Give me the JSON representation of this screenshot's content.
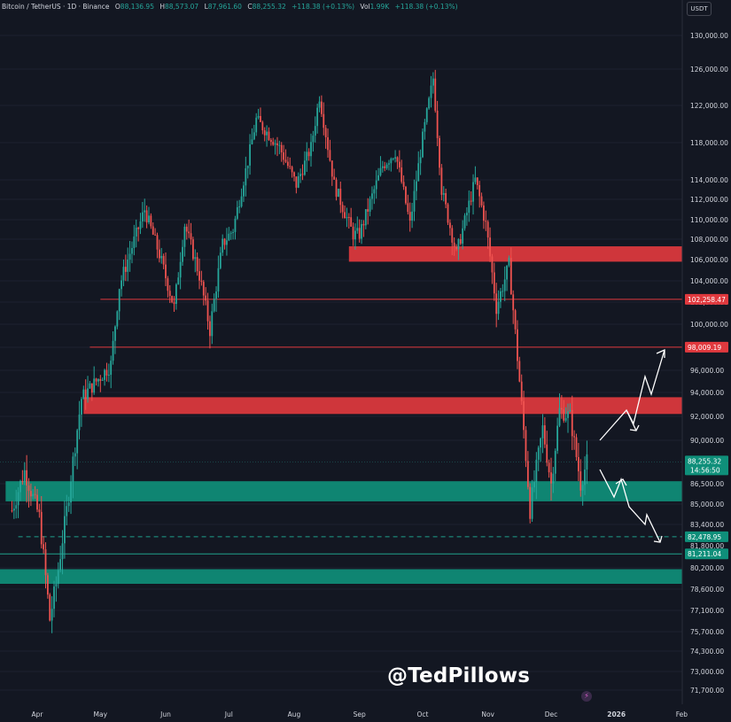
{
  "header": {
    "symbol": "Bitcoin / TetherUS · 1D · Binance",
    "open_label": "O",
    "open": "88,136.95",
    "high_label": "H",
    "high": "88,573.07",
    "low_label": "L",
    "low": "87,961.60",
    "close_label": "C",
    "close": "88,255.32",
    "change": "+118.38 (+0.13%)",
    "vol_label": "Vol",
    "vol": "1.99K",
    "vol_change": "+118.38 (+0.13%)"
  },
  "currency_button": "USDT",
  "watermark": "@TedPillows",
  "colors": {
    "background": "#131722",
    "up": "#26a69a",
    "down": "#ef5350",
    "zone_red": "#e0393e",
    "zone_green": "#0f8f7a",
    "text": "#d1d4dc",
    "arrows": "#ffffff"
  },
  "chart_data": {
    "type": "candlestick",
    "title": "Bitcoin / TetherUS · 1D · Binance",
    "x_ticks": [
      "Apr",
      "May",
      "Jun",
      "Jul",
      "Aug",
      "Sep",
      "Oct",
      "Nov",
      "Dec",
      "2026",
      "Feb"
    ],
    "y_ticks": [
      130000,
      126000,
      122000,
      118000,
      114000,
      112000,
      110000,
      108000,
      106000,
      104000,
      102000,
      100000,
      98000,
      96000,
      94000,
      92000,
      90000,
      86500,
      85000,
      83400,
      80200,
      78600,
      77100,
      75700,
      74300,
      73000,
      71700
    ],
    "price_path": [
      {
        "date": "2025-03-20",
        "price": 84500
      },
      {
        "date": "2025-03-26",
        "price": 87500
      },
      {
        "date": "2025-04-02",
        "price": 84000
      },
      {
        "date": "2025-04-07",
        "price": 76500
      },
      {
        "date": "2025-04-10",
        "price": 79000
      },
      {
        "date": "2025-04-15",
        "price": 84500
      },
      {
        "date": "2025-04-22",
        "price": 93500
      },
      {
        "date": "2025-04-29",
        "price": 95000
      },
      {
        "date": "2025-05-06",
        "price": 96500
      },
      {
        "date": "2025-05-10",
        "price": 103500
      },
      {
        "date": "2025-05-22",
        "price": 111000
      },
      {
        "date": "2025-05-29",
        "price": 106500
      },
      {
        "date": "2025-06-05",
        "price": 101500
      },
      {
        "date": "2025-06-10",
        "price": 109500
      },
      {
        "date": "2025-06-17",
        "price": 104500
      },
      {
        "date": "2025-06-22",
        "price": 99500
      },
      {
        "date": "2025-06-28",
        "price": 107500
      },
      {
        "date": "2025-07-03",
        "price": 109000
      },
      {
        "date": "2025-07-10",
        "price": 116000
      },
      {
        "date": "2025-07-14",
        "price": 120500
      },
      {
        "date": "2025-07-25",
        "price": 117500
      },
      {
        "date": "2025-08-02",
        "price": 113500
      },
      {
        "date": "2025-08-09",
        "price": 117500
      },
      {
        "date": "2025-08-13",
        "price": 123000
      },
      {
        "date": "2025-08-20",
        "price": 113500
      },
      {
        "date": "2025-08-29",
        "price": 108500
      },
      {
        "date": "2025-09-01",
        "price": 108500
      },
      {
        "date": "2025-09-12",
        "price": 115500
      },
      {
        "date": "2025-09-18",
        "price": 117000
      },
      {
        "date": "2025-09-25",
        "price": 109500
      },
      {
        "date": "2025-10-01",
        "price": 118500
      },
      {
        "date": "2025-10-06",
        "price": 125000
      },
      {
        "date": "2025-10-10",
        "price": 113000
      },
      {
        "date": "2025-10-17",
        "price": 106500
      },
      {
        "date": "2025-10-26",
        "price": 114000
      },
      {
        "date": "2025-10-31",
        "price": 109500
      },
      {
        "date": "2025-11-05",
        "price": 101500
      },
      {
        "date": "2025-11-11",
        "price": 105500
      },
      {
        "date": "2025-11-21",
        "price": 84500
      },
      {
        "date": "2025-11-27",
        "price": 91000
      },
      {
        "date": "2025-12-01",
        "price": 86500
      },
      {
        "date": "2025-12-05",
        "price": 92500
      },
      {
        "date": "2025-12-10",
        "price": 92000
      },
      {
        "date": "2025-12-15",
        "price": 86500
      },
      {
        "date": "2025-12-18",
        "price": 88255
      }
    ],
    "zones": [
      {
        "color": "red",
        "from": "2025-08-27",
        "low": 105800,
        "high": 107300
      },
      {
        "color": "red",
        "from": "2025-04-23",
        "low": 92200,
        "high": 93600
      },
      {
        "color": "green",
        "from": "2025-03-17",
        "low": 85200,
        "high": 86700
      },
      {
        "color": "green",
        "from": "2025-03-01",
        "low": 79000,
        "high": 80100
      }
    ],
    "levels": [
      {
        "value": 102258.47,
        "label": "102,258.47",
        "color": "red"
      },
      {
        "value": 98009.19,
        "label": "98,009.19",
        "color": "red"
      },
      {
        "value": 82478.95,
        "label": "82,478.95",
        "color": "green",
        "style": "dashed"
      },
      {
        "value": 81211.04,
        "label": "81,211.04",
        "color": "green"
      }
    ],
    "last_price": {
      "value": 88255.32,
      "label": "88,255.32",
      "countdown": "14:56:50"
    },
    "extra_axis_label": "81,800.00"
  }
}
